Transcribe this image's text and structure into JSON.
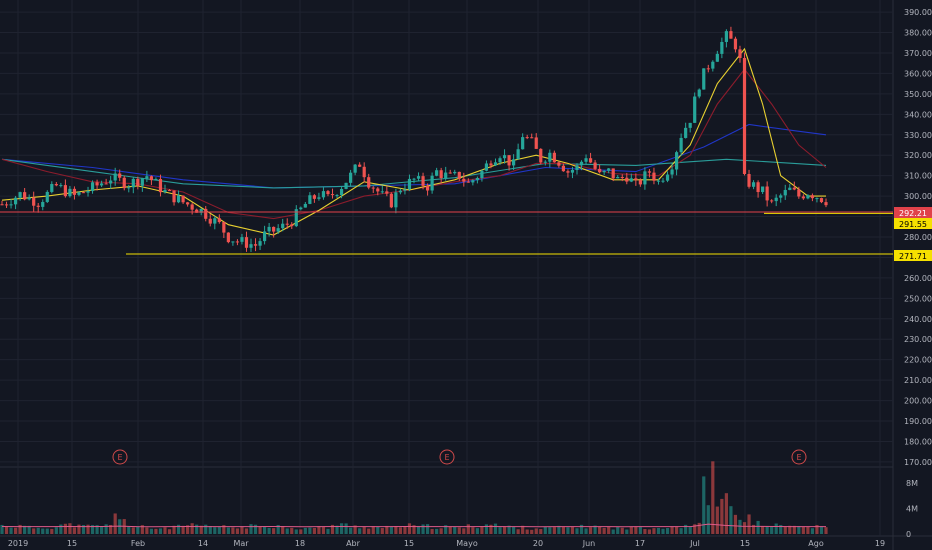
{
  "chart_data": {
    "type": "candlestick",
    "y_range": [
      168,
      392
    ],
    "y_ticks": [
      "390.00",
      "380.00",
      "370.00",
      "360.00",
      "350.00",
      "340.00",
      "330.00",
      "320.00",
      "310.00",
      "300.00",
      "290.00",
      "280.00",
      "270.00",
      "260.00",
      "250.00",
      "240.00",
      "230.00",
      "220.00",
      "210.00",
      "200.00",
      "190.00",
      "180.00",
      "170.00"
    ],
    "x_ticks": [
      "2019",
      "15",
      "Feb",
      "14",
      "Mar",
      "18",
      "Abr",
      "15",
      "Mayo",
      "20",
      "Jun",
      "17",
      "Jul",
      "15",
      "Ago",
      "19"
    ],
    "volume_ticks": [
      "8M",
      "4M",
      "0"
    ],
    "price_labels": [
      {
        "text": "292.21",
        "value": 292.21,
        "color": "#e0424a",
        "text_color": "#ffffff"
      },
      {
        "text": "291.55",
        "value": 291.55,
        "color": "#f5e000",
        "text_color": "#000000"
      },
      {
        "text": "271.71",
        "value": 271.71,
        "color": "#f5e000",
        "text_color": "#000000"
      }
    ],
    "horizontal_lines": [
      {
        "value": 292.21,
        "color": "#e0424a"
      },
      {
        "value": 291.55,
        "color": "#f5e000"
      },
      {
        "value": 271.71,
        "color": "#f5e000"
      }
    ],
    "earnings_markers": [
      "E",
      "E",
      "E"
    ],
    "close_path": [
      [
        0,
        296
      ],
      [
        4,
        301
      ],
      [
        8,
        297
      ],
      [
        12,
        305
      ],
      [
        16,
        300
      ],
      [
        20,
        304
      ],
      [
        24,
        309
      ],
      [
        28,
        306
      ],
      [
        32,
        310
      ],
      [
        36,
        302
      ],
      [
        40,
        297
      ],
      [
        44,
        293
      ],
      [
        48,
        286
      ],
      [
        50,
        280
      ],
      [
        52,
        278
      ],
      [
        56,
        276
      ],
      [
        58,
        281
      ],
      [
        62,
        285
      ],
      [
        64,
        288
      ],
      [
        67,
        296
      ],
      [
        70,
        301
      ],
      [
        72,
        299
      ],
      [
        75,
        305
      ],
      [
        77,
        310
      ],
      [
        79,
        316
      ],
      [
        81,
        307
      ],
      [
        84,
        300
      ],
      [
        86,
        297
      ],
      [
        88,
        304
      ],
      [
        91,
        308
      ],
      [
        94,
        305
      ],
      [
        96,
        312
      ],
      [
        99,
        309
      ],
      [
        101,
        310
      ],
      [
        103,
        306
      ],
      [
        106,
        312
      ],
      [
        108,
        318
      ],
      [
        110,
        321
      ],
      [
        113,
        315
      ],
      [
        115,
        330
      ],
      [
        117,
        326
      ],
      [
        119,
        318
      ],
      [
        121,
        321
      ],
      [
        123,
        317
      ],
      [
        125,
        312
      ],
      [
        127,
        314
      ],
      [
        129,
        320
      ],
      [
        132,
        310
      ],
      [
        134,
        312
      ],
      [
        136,
        308
      ],
      [
        138,
        310
      ],
      [
        140,
        305
      ],
      [
        143,
        312
      ],
      [
        145,
        307
      ],
      [
        148,
        316
      ],
      [
        150,
        330
      ],
      [
        152,
        338
      ],
      [
        154,
        355
      ],
      [
        156,
        364
      ],
      [
        158,
        372
      ],
      [
        160,
        378
      ],
      [
        162,
        374
      ],
      [
        163,
        366
      ],
      [
        164,
        308
      ],
      [
        166,
        305
      ],
      [
        168,
        302
      ],
      [
        170,
        296
      ],
      [
        172,
        300
      ],
      [
        174,
        303
      ],
      [
        176,
        300
      ],
      [
        178,
        302
      ],
      [
        180,
        300
      ],
      [
        182,
        298
      ]
    ],
    "ema_short": [
      [
        0,
        298
      ],
      [
        10,
        300
      ],
      [
        20,
        303
      ],
      [
        30,
        305
      ],
      [
        40,
        300
      ],
      [
        50,
        286
      ],
      [
        60,
        281
      ],
      [
        70,
        293
      ],
      [
        80,
        307
      ],
      [
        90,
        303
      ],
      [
        100,
        308
      ],
      [
        110,
        316
      ],
      [
        118,
        320
      ],
      [
        125,
        316
      ],
      [
        135,
        308
      ],
      [
        145,
        308
      ],
      [
        152,
        325
      ],
      [
        158,
        355
      ],
      [
        164,
        372
      ],
      [
        168,
        345
      ],
      [
        172,
        310
      ],
      [
        178,
        300
      ],
      [
        182,
        300
      ]
    ],
    "ema_mid": [
      [
        0,
        318
      ],
      [
        10,
        312
      ],
      [
        20,
        307
      ],
      [
        30,
        306
      ],
      [
        40,
        302
      ],
      [
        50,
        292
      ],
      [
        60,
        289
      ],
      [
        70,
        293
      ],
      [
        80,
        300
      ],
      [
        90,
        303
      ],
      [
        100,
        307
      ],
      [
        110,
        310
      ],
      [
        118,
        316
      ],
      [
        125,
        316
      ],
      [
        135,
        311
      ],
      [
        145,
        310
      ],
      [
        152,
        320
      ],
      [
        158,
        345
      ],
      [
        164,
        362
      ],
      [
        170,
        345
      ],
      [
        176,
        325
      ],
      [
        182,
        314
      ]
    ],
    "sma_teal": [
      [
        0,
        318
      ],
      [
        20,
        312
      ],
      [
        40,
        306
      ],
      [
        60,
        304
      ],
      [
        80,
        305
      ],
      [
        100,
        309
      ],
      [
        120,
        316
      ],
      [
        140,
        315
      ],
      [
        160,
        318
      ],
      [
        175,
        316
      ],
      [
        182,
        315
      ]
    ],
    "sma_blue": [
      [
        0,
        318
      ],
      [
        20,
        314
      ],
      [
        40,
        308
      ],
      [
        60,
        304
      ],
      [
        80,
        305
      ],
      [
        100,
        306
      ],
      [
        120,
        314
      ],
      [
        140,
        312
      ],
      [
        155,
        324
      ],
      [
        165,
        335
      ],
      [
        175,
        332
      ],
      [
        182,
        330
      ]
    ],
    "volume_profile": [
      1.3,
      1.2,
      1.0,
      1.1,
      1.4,
      1.2,
      1.3,
      2.8,
      1.1,
      0.9,
      1.0,
      1.3,
      1.2,
      1.1,
      1.0,
      1.2,
      1.3,
      1.1,
      0.9,
      1.0,
      1.4,
      1.2,
      1.1,
      1.0,
      1.3,
      1.2,
      1.1,
      1.0,
      1.2,
      1.5,
      1.1,
      1.0,
      0.9,
      1.0,
      1.1,
      1.2,
      1.0,
      0.9,
      1.1,
      1.0,
      1.2,
      1.4,
      9.0,
      5.0,
      2.5,
      1.6,
      1.3,
      1.2,
      1.1,
      1.0
    ]
  }
}
